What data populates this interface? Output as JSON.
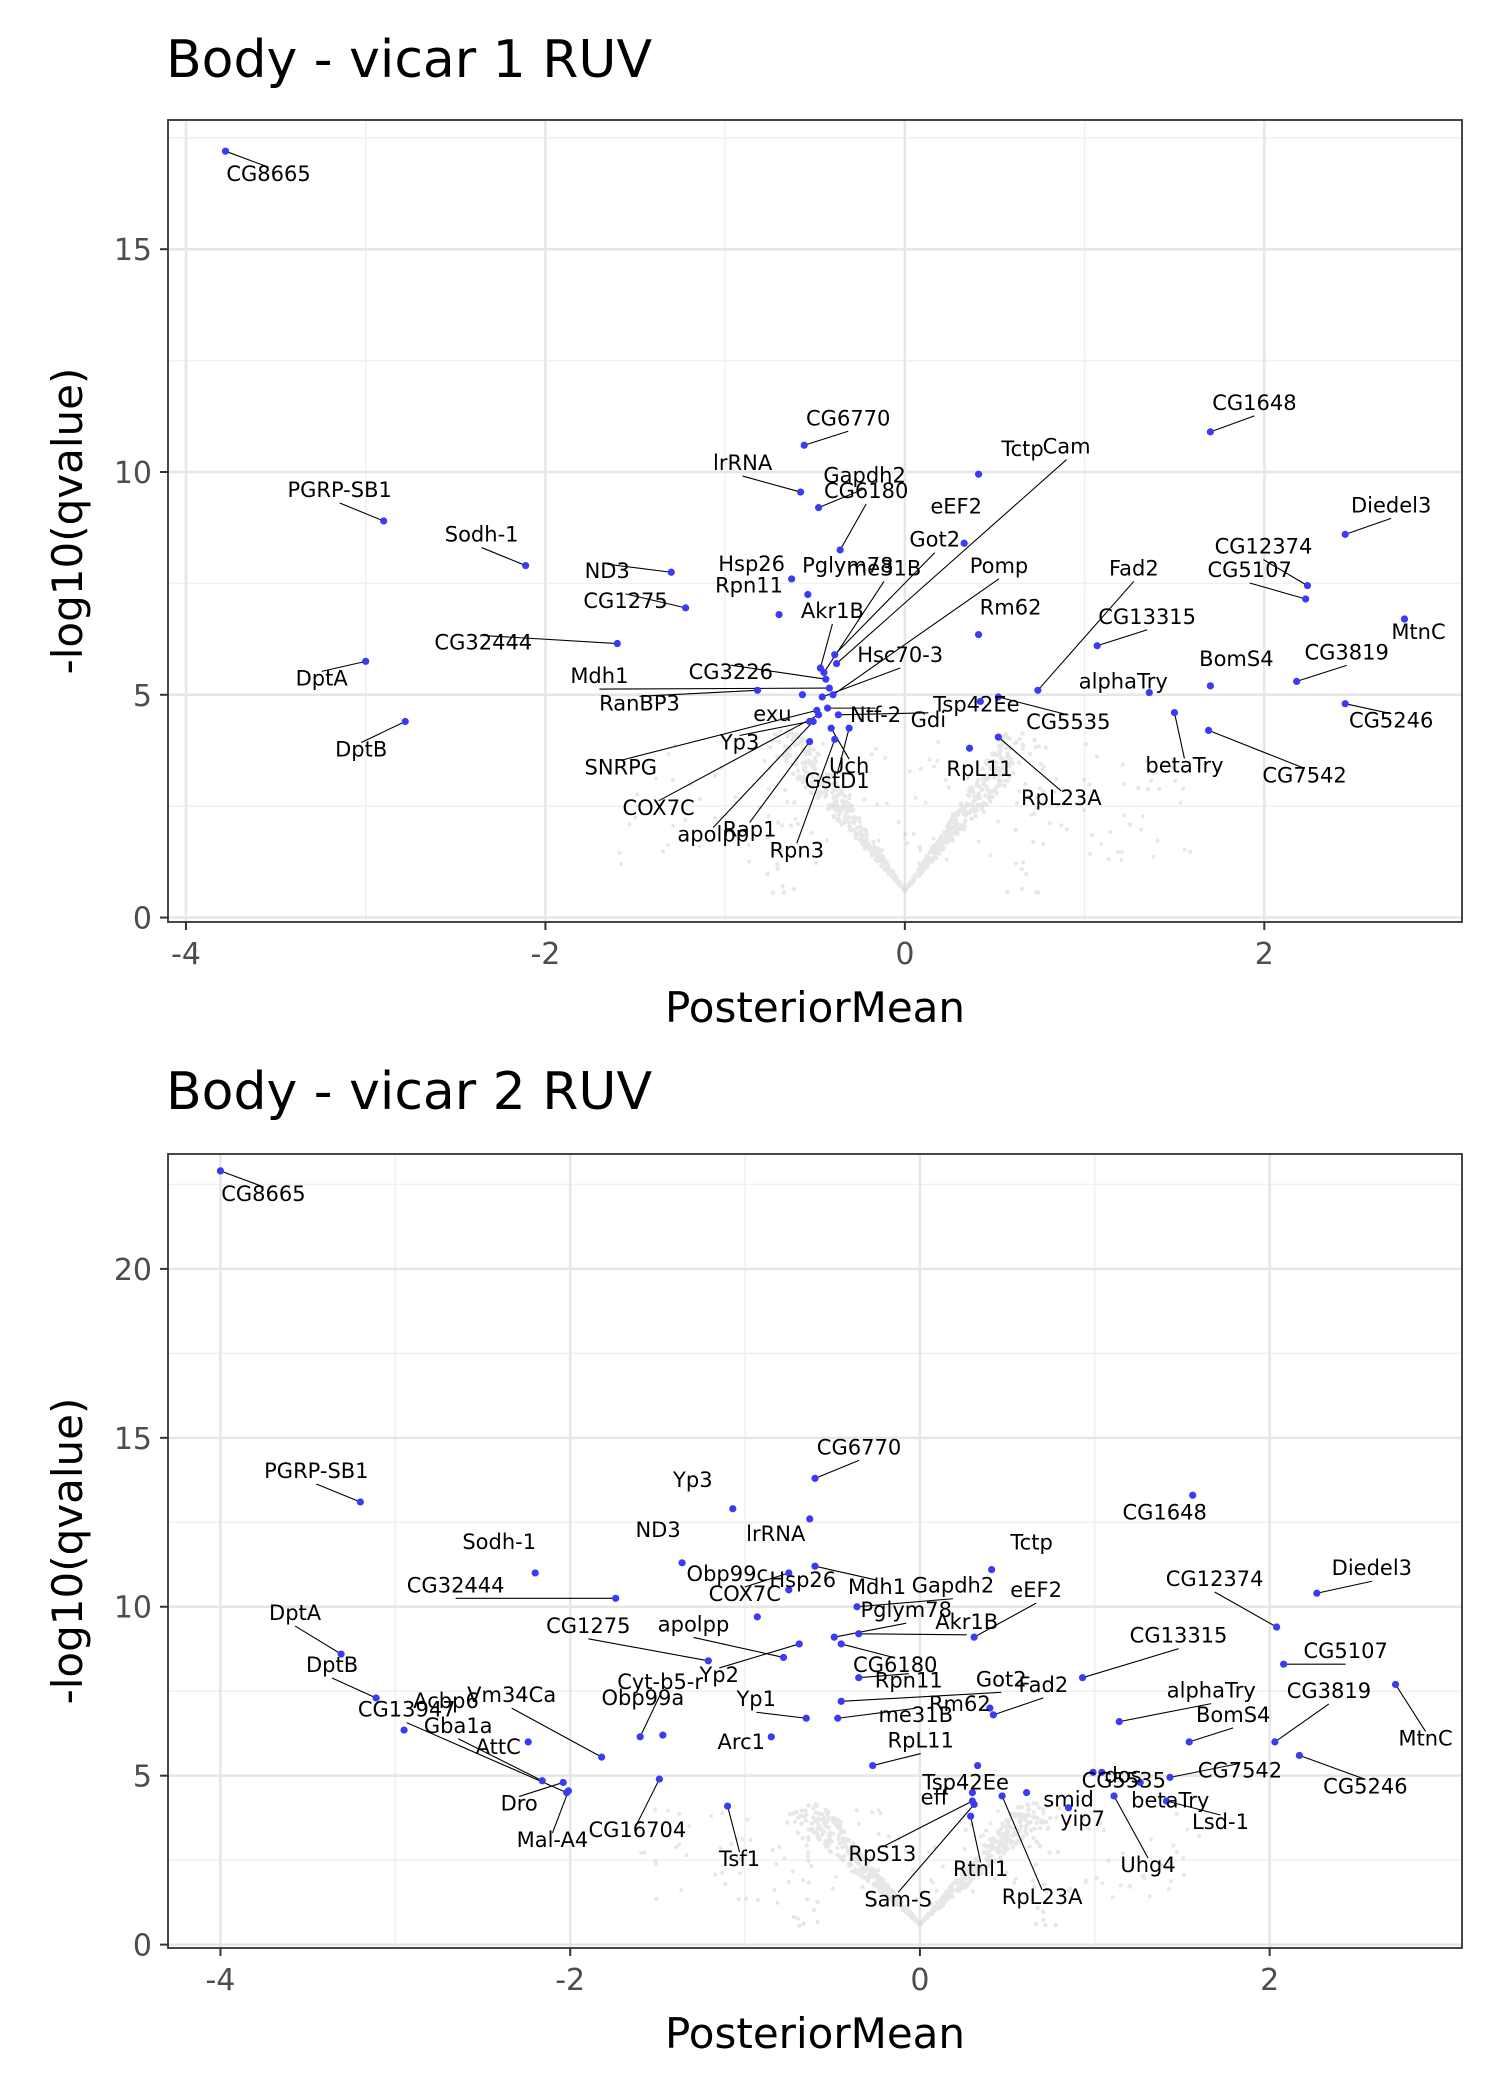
{
  "chart_data": [
    {
      "type": "scatter",
      "title": "Body - vicar 1 RUV",
      "xlabel": "PosteriorMean",
      "ylabel": "-log10(qvalue)",
      "xlim": [
        -4.1,
        3.1
      ],
      "ylim": [
        -0.1,
        17.9
      ],
      "xticks": [
        -4,
        -2,
        0,
        2
      ],
      "xtick_labels": [
        "-4",
        "-2",
        "0",
        "2"
      ],
      "yticks": [
        0,
        5,
        10,
        15
      ],
      "ytick_labels": [
        "0",
        "5",
        "10",
        "15"
      ],
      "grid": true,
      "highlight_color": "#3b3bf5",
      "background_color": "#bdbdbd",
      "labeled_points": [
        {
          "label": "CG8665",
          "x": -3.78,
          "y": 17.2
        },
        {
          "label": "CG6770",
          "x": -0.56,
          "y": 10.6
        },
        {
          "label": "CG1648",
          "x": 1.7,
          "y": 10.9
        },
        {
          "label": "Tctp",
          "x": 0.41,
          "y": 9.95
        },
        {
          "label": "lrRNA",
          "x": -0.58,
          "y": 9.55
        },
        {
          "label": "Gapdh2",
          "x": -0.48,
          "y": 9.2
        },
        {
          "label": "PGRP-SB1",
          "x": -2.9,
          "y": 8.9
        },
        {
          "label": "Hsp26",
          "x": -0.63,
          "y": 7.6
        },
        {
          "label": "CG6180",
          "x": -0.36,
          "y": 8.25
        },
        {
          "label": "eEF2",
          "x": 0.33,
          "y": 8.4
        },
        {
          "label": "Cam",
          "x": -0.38,
          "y": 5.7
        },
        {
          "label": "Diedel3",
          "x": 2.45,
          "y": 8.6
        },
        {
          "label": "Sodh-1",
          "x": -2.11,
          "y": 7.9
        },
        {
          "label": "ND3",
          "x": -1.3,
          "y": 7.75
        },
        {
          "label": "Pglym78",
          "x": -0.54,
          "y": 7.25
        },
        {
          "label": "Got2",
          "x": -0.39,
          "y": 5.9
        },
        {
          "label": "me31B",
          "x": -0.45,
          "y": 5.5
        },
        {
          "label": "Pomp",
          "x": -0.4,
          "y": 5.0
        },
        {
          "label": "Fad2",
          "x": 0.74,
          "y": 5.1
        },
        {
          "label": "CG12374",
          "x": 2.24,
          "y": 7.45
        },
        {
          "label": "CG1275",
          "x": -1.22,
          "y": 6.95
        },
        {
          "label": "Rpn11",
          "x": -0.7,
          "y": 6.8
        },
        {
          "label": "Akr1B",
          "x": -0.47,
          "y": 5.6
        },
        {
          "label": "CG5107",
          "x": 2.23,
          "y": 7.15
        },
        {
          "label": "CG32444",
          "x": -1.6,
          "y": 6.15
        },
        {
          "label": "Hsc70-3",
          "x": -0.46,
          "y": 4.95
        },
        {
          "label": "Rm62",
          "x": 0.41,
          "y": 6.35
        },
        {
          "label": "CG13315",
          "x": 1.07,
          "y": 6.1
        },
        {
          "label": "MtnC",
          "x": 2.78,
          "y": 6.7
        },
        {
          "label": "CG3226",
          "x": -0.44,
          "y": 5.35
        },
        {
          "label": "BomS4",
          "x": 1.7,
          "y": 5.2
        },
        {
          "label": "CG3819",
          "x": 2.18,
          "y": 5.3
        },
        {
          "label": "Mdh1",
          "x": -0.42,
          "y": 5.15
        },
        {
          "label": "Tsp42Ee",
          "x": 0.42,
          "y": 4.85
        },
        {
          "label": "alphaTry",
          "x": 1.36,
          "y": 5.05
        },
        {
          "label": "DptA",
          "x": -3.0,
          "y": 5.75
        },
        {
          "label": "RanBP3",
          "x": -0.82,
          "y": 5.1
        },
        {
          "label": "exu",
          "x": -0.57,
          "y": 5.0
        },
        {
          "label": "Ntf-2",
          "x": -0.43,
          "y": 4.7
        },
        {
          "label": "CG5246",
          "x": 2.45,
          "y": 4.8
        },
        {
          "label": "Gdi",
          "x": -0.37,
          "y": 4.55
        },
        {
          "label": "SNRPG",
          "x": -0.49,
          "y": 4.65
        },
        {
          "label": "CG5535",
          "x": 0.52,
          "y": 4.95
        },
        {
          "label": "DptB",
          "x": -2.78,
          "y": 4.4
        },
        {
          "label": "Yp3",
          "x": -0.53,
          "y": 4.4
        },
        {
          "label": "betaTry",
          "x": 1.5,
          "y": 4.6
        },
        {
          "label": "CG7542",
          "x": 1.69,
          "y": 4.2
        },
        {
          "label": "COX7C",
          "x": -0.48,
          "y": 4.55
        },
        {
          "label": "Rap1",
          "x": -0.53,
          "y": 3.95
        },
        {
          "label": "Uch",
          "x": -0.41,
          "y": 4.25
        },
        {
          "label": "RpL11",
          "x": 0.36,
          "y": 3.8
        },
        {
          "label": "GstD1",
          "x": -0.31,
          "y": 4.25
        },
        {
          "label": "RpL23A",
          "x": 0.52,
          "y": 4.05
        },
        {
          "label": "apolpp",
          "x": -0.51,
          "y": 4.4
        },
        {
          "label": "Rpn3",
          "x": -0.39,
          "y": 4.0
        }
      ]
    },
    {
      "type": "scatter",
      "title": "Body - vicar 2 RUV",
      "xlabel": "PosteriorMean",
      "ylabel": "-log10(qvalue)",
      "xlim": [
        -4.3,
        3.1
      ],
      "ylim": [
        -0.1,
        23.4
      ],
      "xticks": [
        -4,
        -2,
        0,
        2
      ],
      "xtick_labels": [
        "-4",
        "-2",
        "0",
        "2"
      ],
      "yticks": [
        0,
        5,
        10,
        15,
        20
      ],
      "ytick_labels": [
        "0",
        "5",
        "10",
        "15",
        "20"
      ],
      "grid": true,
      "highlight_color": "#3b3bf5",
      "background_color": "#bdbdbd",
      "labeled_points": [
        {
          "label": "CG8665",
          "x": -4.0,
          "y": 22.9
        },
        {
          "label": "CG6770",
          "x": -0.6,
          "y": 13.8
        },
        {
          "label": "PGRP-SB1",
          "x": -3.2,
          "y": 13.1
        },
        {
          "label": "CG1648",
          "x": 1.56,
          "y": 13.3
        },
        {
          "label": "Yp3",
          "x": -1.07,
          "y": 12.9
        },
        {
          "label": "lrRNA",
          "x": -0.63,
          "y": 12.6
        },
        {
          "label": "ND3",
          "x": -1.36,
          "y": 11.3
        },
        {
          "label": "COX7C",
          "x": -0.75,
          "y": 11.0
        },
        {
          "label": "Mdh1",
          "x": -0.6,
          "y": 11.2
        },
        {
          "label": "Tctp",
          "x": 0.41,
          "y": 11.1
        },
        {
          "label": "Sodh-1",
          "x": -2.2,
          "y": 11.0
        },
        {
          "label": "Diedel3",
          "x": 2.27,
          "y": 10.4
        },
        {
          "label": "CG12374",
          "x": 2.04,
          "y": 9.4
        },
        {
          "label": "Obp99c",
          "x": -0.93,
          "y": 9.7
        },
        {
          "label": "CG32444",
          "x": -1.74,
          "y": 10.25
        },
        {
          "label": "Gapdh2",
          "x": -0.36,
          "y": 10.0
        },
        {
          "label": "Hsp26",
          "x": -0.75,
          "y": 10.5
        },
        {
          "label": "eEF2",
          "x": 0.31,
          "y": 9.1
        },
        {
          "label": "DptA",
          "x": -3.31,
          "y": 8.6
        },
        {
          "label": "CG13315",
          "x": 0.93,
          "y": 7.9
        },
        {
          "label": "CG5107",
          "x": 2.08,
          "y": 8.3
        },
        {
          "label": "CG1275",
          "x": -1.21,
          "y": 8.4
        },
        {
          "label": "apolpp",
          "x": -0.78,
          "y": 8.5
        },
        {
          "label": "Pglym78",
          "x": -0.49,
          "y": 9.1
        },
        {
          "label": "Rm62",
          "x": 0.4,
          "y": 7.0
        },
        {
          "label": "CG13947",
          "x": -2.02,
          "y": 4.5
        },
        {
          "label": "Obp99a",
          "x": -1.47,
          "y": 6.2
        },
        {
          "label": "Yp2",
          "x": -0.69,
          "y": 8.9
        },
        {
          "label": "CG6180",
          "x": -0.45,
          "y": 8.9
        },
        {
          "label": "Rpn11",
          "x": -0.35,
          "y": 7.9
        },
        {
          "label": "Got2",
          "x": -0.45,
          "y": 7.2
        },
        {
          "label": "Fad2",
          "x": 0.42,
          "y": 6.8
        },
        {
          "label": "alphaTry",
          "x": 1.14,
          "y": 6.6
        },
        {
          "label": "DptB",
          "x": -3.11,
          "y": 7.3
        },
        {
          "label": "Acbp6",
          "x": -2.95,
          "y": 6.35
        },
        {
          "label": "Gba1a",
          "x": -2.16,
          "y": 4.85
        },
        {
          "label": "Vm34Ca",
          "x": -1.82,
          "y": 5.55
        },
        {
          "label": "Cyt-b5-r",
          "x": -1.6,
          "y": 6.15
        },
        {
          "label": "Yp1",
          "x": -0.65,
          "y": 6.7
        },
        {
          "label": "me31B",
          "x": -0.47,
          "y": 6.7
        },
        {
          "label": "BomS4",
          "x": 1.54,
          "y": 6.0
        },
        {
          "label": "CG3819",
          "x": 2.03,
          "y": 6.0
        },
        {
          "label": "MtnC",
          "x": 2.72,
          "y": 7.7
        },
        {
          "label": "CG5535",
          "x": 1.04,
          "y": 5.1
        },
        {
          "label": "betaTry",
          "x": 1.26,
          "y": 4.8
        },
        {
          "label": "Tsp42Ee",
          "x": 0.33,
          "y": 5.3
        },
        {
          "label": "Akr1B",
          "x": -0.35,
          "y": 9.2
        },
        {
          "label": "AttC",
          "x": -2.24,
          "y": 6.0
        },
        {
          "label": "RpL11",
          "x": -0.27,
          "y": 5.3
        },
        {
          "label": "Arc1",
          "x": -0.85,
          "y": 6.15
        },
        {
          "label": "smid",
          "x": 0.61,
          "y": 4.5
        },
        {
          "label": "dos",
          "x": 0.99,
          "y": 5.1
        },
        {
          "label": "CG7542",
          "x": 1.43,
          "y": 4.95
        },
        {
          "label": "Dro",
          "x": -2.04,
          "y": 4.8
        },
        {
          "label": "CG16704",
          "x": -1.49,
          "y": 4.9
        },
        {
          "label": "Mal-A4",
          "x": -2.01,
          "y": 4.55
        },
        {
          "label": "Tsf1",
          "x": -1.1,
          "y": 4.1
        },
        {
          "label": "eff",
          "x": 0.3,
          "y": 4.5
        },
        {
          "label": "yip7",
          "x": 0.85,
          "y": 4.05
        },
        {
          "label": "CG5246",
          "x": 2.17,
          "y": 5.6
        },
        {
          "label": "Lsd-1",
          "x": 1.41,
          "y": 4.25
        },
        {
          "label": "Uhg4",
          "x": 1.11,
          "y": 4.4
        },
        {
          "label": "RpS13",
          "x": 0.3,
          "y": 4.25
        },
        {
          "label": "Rtnl1",
          "x": 0.29,
          "y": 3.8
        },
        {
          "label": "Sam-S",
          "x": 0.31,
          "y": 4.15
        },
        {
          "label": "RpL23A",
          "x": 0.47,
          "y": 4.4
        }
      ]
    }
  ]
}
